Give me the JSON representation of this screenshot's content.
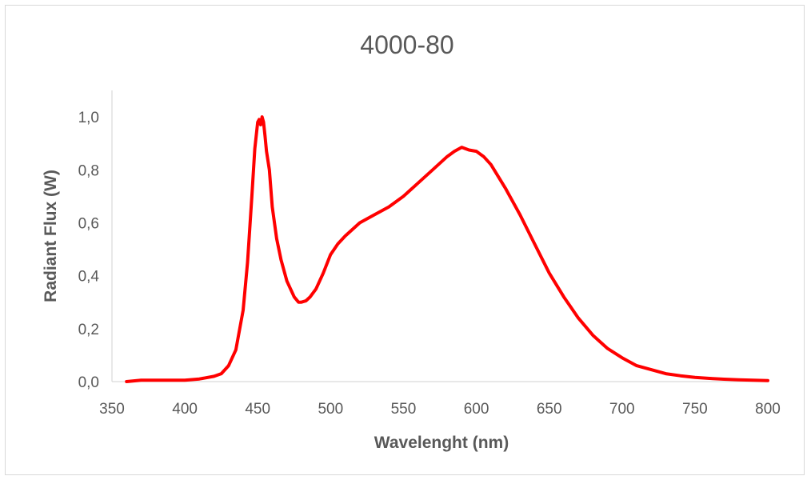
{
  "chart_data": {
    "type": "line",
    "title": "4000-80",
    "xlabel": "Wavelenght (nm)",
    "ylabel": "Radiant Flux (W)",
    "xlim": [
      350,
      800
    ],
    "ylim": [
      0,
      1.1
    ],
    "x_ticks": [
      "350",
      "400",
      "450",
      "500",
      "550",
      "600",
      "650",
      "700",
      "750",
      "800"
    ],
    "y_ticks": [
      "0,0",
      "0,2",
      "0,4",
      "0,6",
      "0,8",
      "1,0"
    ],
    "grid": false,
    "legend": "none",
    "series": [
      {
        "color": "#ff0000",
        "x": [
          360,
          370,
          380,
          390,
          400,
          410,
          420,
          425,
          430,
          435,
          440,
          443,
          446,
          448,
          450,
          451,
          452,
          453,
          454,
          455,
          456,
          458,
          460,
          463,
          466,
          470,
          475,
          478,
          480,
          483,
          486,
          490,
          495,
          500,
          505,
          510,
          520,
          530,
          540,
          550,
          560,
          570,
          580,
          585,
          590,
          595,
          600,
          605,
          610,
          620,
          630,
          640,
          650,
          660,
          670,
          680,
          690,
          700,
          710,
          720,
          730,
          740,
          750,
          760,
          770,
          780,
          790,
          800
        ],
        "y": [
          0.0,
          0.005,
          0.005,
          0.005,
          0.005,
          0.01,
          0.02,
          0.03,
          0.06,
          0.12,
          0.27,
          0.45,
          0.7,
          0.88,
          0.98,
          0.99,
          0.97,
          1.0,
          0.98,
          0.93,
          0.87,
          0.8,
          0.66,
          0.54,
          0.46,
          0.38,
          0.32,
          0.3,
          0.3,
          0.305,
          0.32,
          0.35,
          0.41,
          0.48,
          0.52,
          0.55,
          0.6,
          0.63,
          0.66,
          0.7,
          0.75,
          0.8,
          0.85,
          0.87,
          0.885,
          0.875,
          0.87,
          0.85,
          0.82,
          0.73,
          0.63,
          0.52,
          0.41,
          0.32,
          0.24,
          0.175,
          0.125,
          0.09,
          0.06,
          0.045,
          0.03,
          0.022,
          0.016,
          0.012,
          0.009,
          0.007,
          0.005,
          0.004
        ]
      }
    ]
  }
}
